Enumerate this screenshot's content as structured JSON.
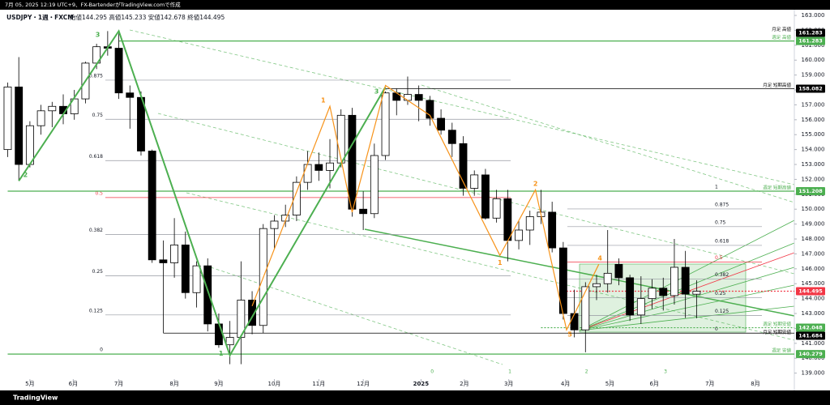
{
  "header": {
    "credit": "7月 05, 2025 12:19 UTC+9、FX-BartenderがTradingView.comで作成",
    "symbol": "USDJPY・1週・FXCM",
    "ohlc": "始値144.295 高値145.233 安値142.678 終値144.495"
  },
  "footer": {
    "brand": "TradingView"
  },
  "chart_data": {
    "type": "candlestick",
    "xlim": [
      -0.4,
      70.8
    ],
    "ylim": [
      138.6,
      163.6
    ],
    "xticks": [
      {
        "value": 2,
        "label": "5月"
      },
      {
        "value": 5.9,
        "label": "6月"
      },
      {
        "value": 10,
        "label": "7月"
      },
      {
        "value": 15,
        "label": "8月"
      },
      {
        "value": 19,
        "label": "9月"
      },
      {
        "value": 24,
        "label": "10月"
      },
      {
        "value": 28,
        "label": "11月"
      },
      {
        "value": 32,
        "label": "12月"
      },
      {
        "value": 37.2,
        "label": "2025"
      },
      {
        "value": 41.1,
        "label": "2月"
      },
      {
        "value": 45.1,
        "label": "3月"
      },
      {
        "value": 50.2,
        "label": "4月"
      },
      {
        "value": 54.2,
        "label": "5月"
      },
      {
        "value": 58.2,
        "label": "6月"
      },
      {
        "value": 63.2,
        "label": "7月"
      },
      {
        "value": 67.3,
        "label": "8月"
      }
    ],
    "yticks": [
      {
        "value": 139,
        "label": "139.000"
      },
      {
        "value": 140,
        "label": "140.000"
      },
      {
        "value": 141,
        "label": "141.000"
      },
      {
        "value": 142,
        "label": "142.000"
      },
      {
        "value": 143,
        "label": "143.000"
      },
      {
        "value": 144,
        "label": "144.000"
      },
      {
        "value": 145,
        "label": "145.000"
      },
      {
        "value": 146,
        "label": "146.000"
      },
      {
        "value": 147,
        "label": "147.000"
      },
      {
        "value": 148,
        "label": "148.000"
      },
      {
        "value": 149,
        "label": "149.000"
      },
      {
        "value": 150,
        "label": "150.000"
      },
      {
        "value": 151,
        "label": "151.000"
      },
      {
        "value": 152,
        "label": "152.000"
      },
      {
        "value": 153,
        "label": "153.000"
      },
      {
        "value": 154,
        "label": "154.000"
      },
      {
        "value": 155,
        "label": "155.000"
      },
      {
        "value": 156,
        "label": "156.000"
      },
      {
        "value": 157,
        "label": "157.000"
      },
      {
        "value": 158,
        "label": "158.000"
      },
      {
        "value": 159,
        "label": "159.000"
      },
      {
        "value": 160,
        "label": "160.000"
      },
      {
        "value": 161,
        "label": "161.000"
      },
      {
        "value": 162,
        "label": "162.000"
      },
      {
        "value": 163,
        "label": "163.000"
      }
    ],
    "up_color": "#ffffff",
    "down_color": "#000000",
    "candles": {
      "open": [
        154.0,
        158.2,
        153.0,
        155.6,
        156.6,
        156.9,
        156.4,
        157.4,
        159.8,
        160.9,
        160.8,
        157.8,
        157.5,
        153.9,
        146.6,
        146.4,
        147.6,
        144.4,
        146.2,
        142.3,
        140.9,
        141.4,
        143.9,
        142.2,
        148.7,
        149.2,
        149.6,
        151.8,
        153.0,
        152.6,
        153.1,
        156.3,
        150.0,
        149.7,
        153.6,
        157.8,
        157.3,
        157.7,
        157.3,
        156.1,
        155.3,
        154.4,
        151.4,
        152.3,
        149.4,
        150.7,
        147.9,
        148.6,
        149.5,
        149.8,
        147.4,
        143.0,
        141.9,
        144.8,
        145.0,
        146.3,
        145.4,
        142.9,
        144.0,
        144.7,
        144.2,
        146.1,
        144.295
      ],
      "high": [
        158.5,
        160.2,
        155.9,
        157.0,
        157.2,
        157.7,
        158.0,
        159.9,
        161.1,
        161.95,
        161.8,
        158.3,
        157.9,
        154.0,
        147.9,
        149.4,
        148.5,
        146.5,
        146.7,
        143.0,
        142.5,
        146.5,
        144.5,
        149.0,
        149.6,
        150.3,
        152.2,
        153.9,
        153.8,
        154.7,
        156.7,
        156.8,
        151.2,
        154.4,
        157.9,
        158.1,
        158.9,
        158.3,
        157.6,
        156.7,
        155.8,
        154.9,
        152.6,
        152.7,
        151.3,
        151.3,
        149.2,
        149.9,
        151.3,
        150.5,
        147.8,
        144.6,
        145.1,
        145.6,
        148.6,
        146.7,
        145.6,
        145.5,
        145.3,
        145.4,
        148.0,
        147.2,
        145.233
      ],
      "low": [
        153.5,
        151.9,
        152.8,
        155.0,
        155.5,
        155.7,
        156.0,
        157.1,
        159.4,
        160.3,
        157.4,
        155.4,
        153.6,
        146.4,
        141.7,
        145.4,
        144.0,
        143.4,
        141.8,
        140.7,
        139.6,
        139.6,
        141.6,
        141.7,
        147.3,
        148.8,
        149.2,
        151.3,
        151.9,
        151.4,
        152.8,
        149.5,
        148.6,
        149.4,
        153.3,
        156.3,
        157.0,
        155.9,
        155.6,
        155.0,
        153.5,
        150.9,
        150.9,
        149.3,
        149.1,
        146.5,
        147.3,
        147.6,
        149.0,
        147.1,
        142.6,
        141.4,
        140.4,
        143.9,
        144.4,
        144.9,
        142.5,
        142.3,
        143.3,
        143.2,
        143.6,
        142.7,
        142.678
      ],
      "close": [
        158.2,
        153.0,
        155.6,
        156.6,
        156.9,
        156.4,
        157.4,
        159.8,
        160.9,
        160.8,
        157.8,
        157.5,
        153.9,
        146.6,
        146.4,
        147.6,
        144.4,
        146.2,
        142.3,
        140.9,
        141.4,
        143.9,
        142.2,
        148.7,
        149.2,
        149.6,
        151.8,
        153.0,
        152.6,
        153.1,
        156.3,
        150.0,
        149.7,
        153.6,
        157.8,
        157.3,
        157.7,
        157.3,
        156.1,
        155.3,
        154.4,
        151.4,
        152.3,
        149.4,
        150.7,
        147.9,
        148.6,
        149.5,
        149.8,
        147.4,
        143.0,
        141.9,
        144.8,
        145.0,
        145.7,
        145.4,
        142.9,
        144.0,
        144.7,
        144.2,
        146.1,
        144.3,
        144.495
      ]
    },
    "levels": [
      {
        "value": 161.283,
        "label": "月足 高値",
        "color": "#000000",
        "style": "solid"
      },
      {
        "value": 161.283,
        "label": "週足 高値",
        "color": "#4caf50",
        "style": "solid"
      },
      {
        "value": 158.082,
        "label": "月足 短期高値",
        "color": "#000000",
        "style": "solid"
      },
      {
        "value": 151.208,
        "label": "週足 短期高値",
        "color": "#4caf50",
        "style": "solid"
      },
      {
        "value": 144.495,
        "color": "#f23645",
        "style": "dotted"
      },
      {
        "value": 142.048,
        "label": "週足 短期安値",
        "color": "#4caf50",
        "style": "dotted"
      },
      {
        "value": 141.684,
        "label": "月足 短期安値",
        "color": "#000000",
        "style": "solid"
      },
      {
        "value": 140.279,
        "label": "週足 安値",
        "color": "#4caf50",
        "style": "solid"
      }
    ],
    "fib_left": {
      "low": 140.279,
      "high": 161.283,
      "levels": [
        0.875,
        0.75,
        0.618,
        0.5,
        0.382,
        0.25,
        0.125,
        0
      ]
    },
    "fib_right": {
      "low": 141.684,
      "high": 151.208,
      "levels": [
        1,
        0.875,
        0.75,
        0.618,
        0.5,
        0.382,
        0.25,
        0.125,
        0
      ]
    },
    "waves": [
      {
        "name": "primary",
        "color": "#4caf50",
        "x": [
          1,
          10,
          20,
          34
        ],
        "values": [
          151.9,
          161.95,
          140.2,
          158.2
        ]
      },
      {
        "name": "minor",
        "color": "#f7931a",
        "x": [
          22,
          29,
          31,
          34,
          38,
          44.3,
          47.5,
          50.3,
          53.2
        ],
        "values": [
          143.5,
          156.9,
          149.8,
          158.3,
          156.3,
          146.9,
          151.3,
          141.9,
          146.3
        ]
      }
    ],
    "wave_labels": [
      {
        "label": "3",
        "x": 8.1,
        "y": 161.7,
        "color": "#4caf50"
      },
      {
        "label": "2",
        "x": 1.6,
        "y": 152.3,
        "color": "#4caf50"
      },
      {
        "label": "1",
        "x": 19.2,
        "y": 140.3,
        "color": "#4caf50"
      },
      {
        "label": "3",
        "x": 33.2,
        "y": 157.9,
        "color": "#4caf50"
      },
      {
        "label": "1",
        "x": 28.4,
        "y": 157.3,
        "color": "#f7931a"
      },
      {
        "label": "1",
        "x": 44.3,
        "y": 146.4,
        "color": "#f7931a"
      },
      {
        "label": "2",
        "x": 47.5,
        "y": 151.7,
        "color": "#f7931a"
      },
      {
        "label": "4",
        "x": 53.3,
        "y": 146.7,
        "color": "#f7931a"
      },
      {
        "label": "5",
        "x": 50.6,
        "y": 141.6,
        "color": "#f7931a"
      }
    ],
    "time_zones": [
      {
        "label": "0",
        "x": 38.2
      },
      {
        "label": "1",
        "x": 45.2
      },
      {
        "label": "2",
        "x": 52.1
      },
      {
        "label": "3",
        "x": 59.2
      }
    ]
  }
}
